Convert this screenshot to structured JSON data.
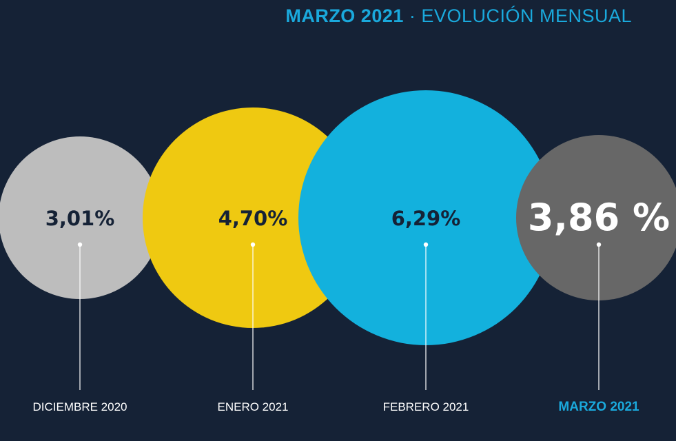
{
  "header": {
    "highlight": "MARZO 2021",
    "separator": "·",
    "subtitle": "EVOLUCIÓN MENSUAL"
  },
  "chart_data": {
    "type": "bubble",
    "categories": [
      "DICIEMBRE 2020",
      "ENERO 2021",
      "FEBRERO 2021",
      "MARZO 2021"
    ],
    "values": [
      3.01,
      4.7,
      6.29,
      3.86
    ],
    "value_labels": [
      "3,01%",
      "4,70%",
      "6,29%",
      "3,86 %"
    ],
    "colors": [
      "#bdbdbd",
      "#efc911",
      "#13b1dd",
      "#676767"
    ],
    "value_text_colors": [
      "#152236",
      "#152236",
      "#152236",
      "#ffffff"
    ],
    "label_colors": [
      "#ffffff",
      "#ffffff",
      "#ffffff",
      "#1aa9dc"
    ],
    "highlighted_index": 3
  }
}
